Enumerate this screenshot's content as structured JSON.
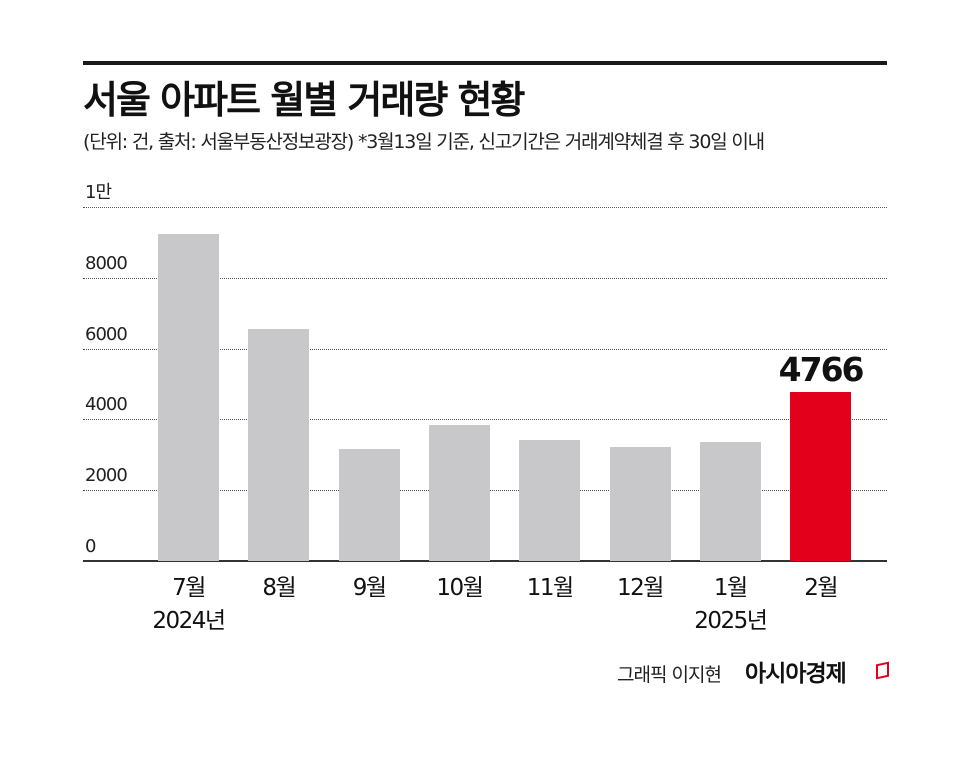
{
  "header": {
    "title": "서울 아파트 월별 거래량 현황",
    "subtitle": "(단위: 건, 출처: 서울부동산정보광장)  *3월13일 기준, 신고기간은 거래계약체결 후 30일 이내"
  },
  "footer": {
    "credit": "그래픽 이지현",
    "brand": "아시아경제",
    "brand_color": "#e2001a"
  },
  "chart_data": {
    "type": "bar",
    "title": "서울 아파트 월별 거래량 현황",
    "subtitle": "(단위: 건, 출처: 서울부동산정보광장) *3월13일 기준, 신고기간은 거래계약체결 후 30일 이내",
    "xlabel": "",
    "ylabel": "건",
    "categories": [
      "7월 2024년",
      "8월",
      "9월",
      "10월",
      "11월",
      "12월",
      "1월 2025년",
      "2월"
    ],
    "category_labels": [
      {
        "month": "7월",
        "year": "2024년"
      },
      {
        "month": "8월",
        "year": ""
      },
      {
        "month": "9월",
        "year": ""
      },
      {
        "month": "10월",
        "year": ""
      },
      {
        "month": "11월",
        "year": ""
      },
      {
        "month": "12월",
        "year": ""
      },
      {
        "month": "1월",
        "year": "2025년"
      },
      {
        "month": "2월",
        "year": ""
      }
    ],
    "values": [
      9230,
      6550,
      3160,
      3840,
      3420,
      3220,
      3360,
      4766
    ],
    "highlight_index": 7,
    "highlight_label": "4766",
    "colors": {
      "default": "#c8c8ca",
      "highlight": "#e2001a"
    },
    "yticks": [
      "0",
      "2000",
      "4000",
      "6000",
      "8000",
      "1만"
    ],
    "ytick_values": [
      0,
      2000,
      4000,
      6000,
      8000,
      10000
    ],
    "ylim": [
      0,
      10000
    ],
    "grid": true,
    "legend": "none"
  }
}
